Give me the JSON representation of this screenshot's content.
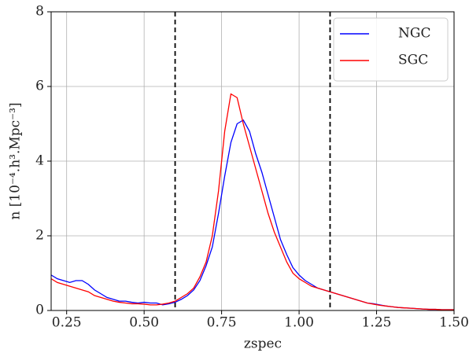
{
  "chart_data": {
    "type": "line",
    "xlabel": "zspec",
    "ylabel": "n [10⁻⁴.h³.Mpc⁻³]",
    "x": [
      0.2,
      0.22,
      0.24,
      0.26,
      0.28,
      0.3,
      0.32,
      0.34,
      0.36,
      0.38,
      0.4,
      0.42,
      0.44,
      0.46,
      0.48,
      0.5,
      0.52,
      0.54,
      0.56,
      0.58,
      0.6,
      0.62,
      0.64,
      0.66,
      0.68,
      0.7,
      0.72,
      0.74,
      0.76,
      0.78,
      0.8,
      0.82,
      0.84,
      0.86,
      0.88,
      0.9,
      0.92,
      0.94,
      0.96,
      0.98,
      1.0,
      1.02,
      1.04,
      1.06,
      1.08,
      1.1,
      1.12,
      1.14,
      1.16,
      1.18,
      1.2,
      1.22,
      1.24,
      1.26,
      1.28,
      1.3,
      1.32,
      1.34,
      1.36,
      1.38,
      1.4,
      1.42,
      1.44,
      1.46,
      1.48,
      1.5
    ],
    "series": [
      {
        "name": "NGC",
        "color": "#0000ff",
        "values": [
          0.95,
          0.85,
          0.8,
          0.75,
          0.8,
          0.8,
          0.7,
          0.55,
          0.45,
          0.35,
          0.3,
          0.25,
          0.25,
          0.22,
          0.2,
          0.22,
          0.2,
          0.2,
          0.15,
          0.18,
          0.22,
          0.3,
          0.4,
          0.55,
          0.8,
          1.2,
          1.7,
          2.6,
          3.6,
          4.5,
          5.0,
          5.1,
          4.8,
          4.2,
          3.7,
          3.1,
          2.5,
          1.9,
          1.5,
          1.15,
          0.95,
          0.8,
          0.7,
          0.6,
          0.55,
          0.5,
          0.45,
          0.4,
          0.35,
          0.3,
          0.25,
          0.2,
          0.18,
          0.15,
          0.12,
          0.1,
          0.08,
          0.07,
          0.06,
          0.05,
          0.04,
          0.03,
          0.03,
          0.02,
          0.02,
          0.02
        ]
      },
      {
        "name": "SGC",
        "color": "#ff0000",
        "values": [
          0.85,
          0.75,
          0.7,
          0.65,
          0.6,
          0.55,
          0.5,
          0.4,
          0.35,
          0.3,
          0.25,
          0.22,
          0.2,
          0.18,
          0.18,
          0.17,
          0.15,
          0.15,
          0.17,
          0.2,
          0.25,
          0.35,
          0.45,
          0.6,
          0.9,
          1.3,
          2.0,
          3.2,
          4.8,
          5.8,
          5.7,
          5.0,
          4.4,
          3.8,
          3.2,
          2.6,
          2.1,
          1.7,
          1.3,
          1.0,
          0.85,
          0.75,
          0.65,
          0.6,
          0.55,
          0.5,
          0.45,
          0.4,
          0.35,
          0.3,
          0.25,
          0.2,
          0.17,
          0.14,
          0.12,
          0.1,
          0.08,
          0.07,
          0.06,
          0.05,
          0.04,
          0.03,
          0.03,
          0.02,
          0.02,
          0.02
        ]
      }
    ],
    "vlines": [
      0.6,
      1.1
    ],
    "xlim": [
      0.2,
      1.5
    ],
    "ylim": [
      0,
      8
    ],
    "xticks": [
      {
        "value": 0.25,
        "label": "0.25"
      },
      {
        "value": 0.5,
        "label": "0.50"
      },
      0.75,
      {
        "value": 1.0,
        "label": "1.00"
      },
      1.25,
      {
        "value": 1.5,
        "label": "1.50"
      }
    ],
    "yticks": [
      0,
      2,
      4,
      6,
      8
    ],
    "grid": true,
    "legend": "upper right"
  }
}
